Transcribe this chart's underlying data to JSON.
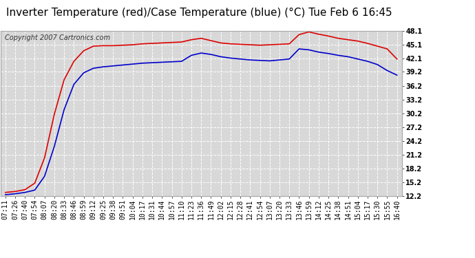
{
  "title": "Inverter Temperature (red)/Case Temperature (blue) (°C) Tue Feb 6 16:45",
  "copyright": "Copyright 2007 Cartronics.com",
  "ylim": [
    12.2,
    48.1
  ],
  "yticks": [
    12.2,
    15.2,
    18.2,
    21.2,
    24.2,
    27.2,
    30.2,
    33.2,
    36.2,
    39.2,
    42.1,
    45.1,
    48.1
  ],
  "background_color": "#ffffff",
  "plot_bg_color": "#d8d8d8",
  "grid_color": "#ffffff",
  "x_labels": [
    "07:11",
    "07:26",
    "07:40",
    "07:54",
    "08:07",
    "08:20",
    "08:33",
    "08:46",
    "08:59",
    "09:12",
    "09:25",
    "09:38",
    "09:51",
    "10:04",
    "10:17",
    "10:31",
    "10:44",
    "10:57",
    "11:10",
    "11:23",
    "11:36",
    "11:49",
    "12:02",
    "12:15",
    "12:28",
    "12:41",
    "12:54",
    "13:07",
    "13:20",
    "13:33",
    "13:46",
    "13:59",
    "14:12",
    "14:25",
    "14:38",
    "14:51",
    "15:04",
    "15:17",
    "15:30",
    "15:55",
    "16:40"
  ],
  "red_data": [
    13.0,
    13.2,
    13.6,
    15.0,
    20.5,
    30.0,
    37.5,
    41.5,
    43.8,
    44.8,
    44.9,
    44.9,
    45.0,
    45.1,
    45.3,
    45.4,
    45.5,
    45.6,
    45.7,
    46.2,
    46.5,
    46.0,
    45.5,
    45.3,
    45.2,
    45.1,
    45.0,
    45.1,
    45.2,
    45.3,
    47.3,
    47.9,
    47.4,
    47.0,
    46.5,
    46.2,
    45.9,
    45.4,
    44.8,
    44.2,
    42.0
  ],
  "blue_data": [
    12.5,
    12.7,
    13.0,
    13.5,
    16.5,
    23.0,
    31.0,
    36.5,
    39.0,
    40.0,
    40.3,
    40.5,
    40.7,
    40.9,
    41.1,
    41.2,
    41.3,
    41.4,
    41.5,
    42.8,
    43.3,
    43.0,
    42.5,
    42.2,
    42.0,
    41.8,
    41.7,
    41.6,
    41.8,
    42.0,
    44.2,
    44.0,
    43.5,
    43.2,
    42.8,
    42.5,
    42.0,
    41.5,
    40.8,
    39.5,
    38.5
  ],
  "red_color": "#dd0000",
  "blue_color": "#0000cc",
  "title_fontsize": 11,
  "copyright_fontsize": 7,
  "tick_fontsize": 7
}
